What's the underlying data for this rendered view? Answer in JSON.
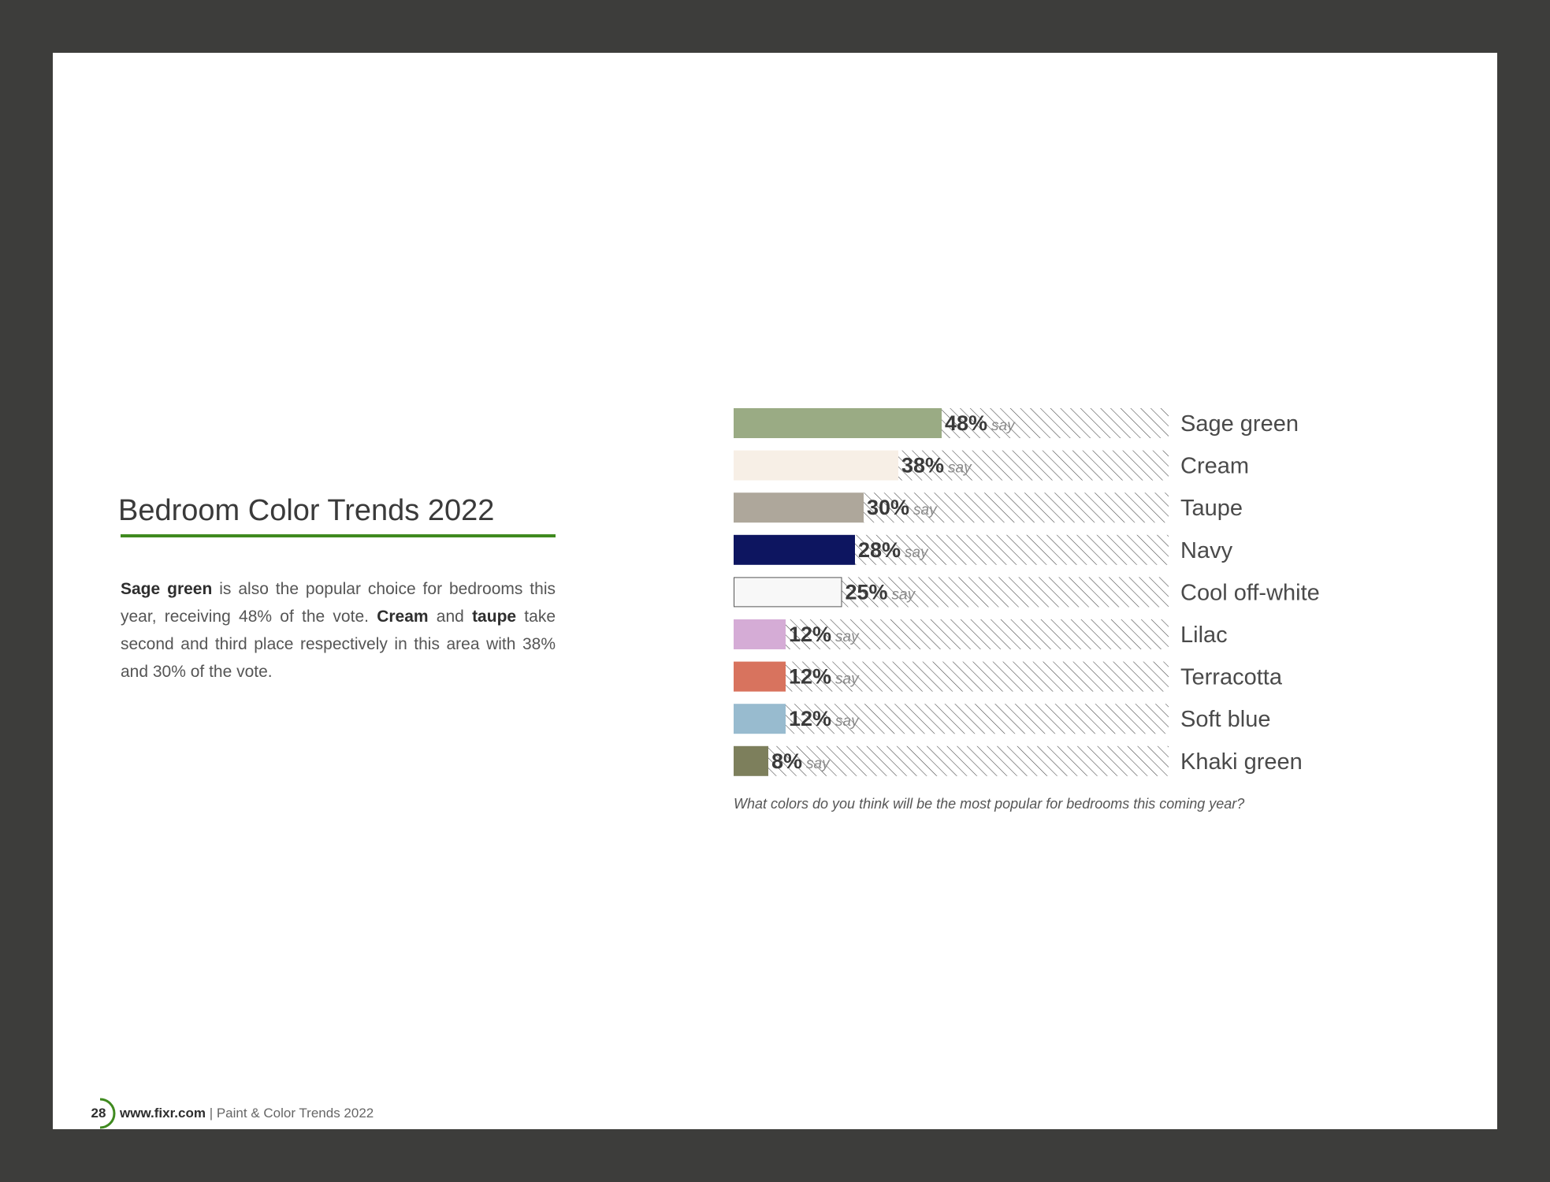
{
  "page": {
    "title": "Bedroom Color Trends 2022",
    "accent_color": "#3f8a1f",
    "body": [
      {
        "text": "Sage green",
        "bold": true
      },
      {
        "text": " is also the popular choice for bedrooms this year, receiving 48% of the vote. ",
        "bold": false
      },
      {
        "text": "Cream",
        "bold": true
      },
      {
        "text": " and ",
        "bold": false
      },
      {
        "text": "taupe",
        "bold": true
      },
      {
        "text": " take second and third place respectively in this area with 38% and 30% of the vote.",
        "bold": false
      }
    ],
    "footer": {
      "page_number": "28",
      "site": "www.fixr.com",
      "separator": " | ",
      "publication": "Paint & Color Trends 2022"
    }
  },
  "chart_data": {
    "type": "bar",
    "orientation": "horizontal",
    "title": "",
    "caption": "What colors do you think will be the most popular for bedrooms this coming year?",
    "value_suffix": "say",
    "xlim": [
      0,
      100
    ],
    "grid": false,
    "categories": [
      "Sage green",
      "Cream",
      "Taupe",
      "Navy",
      "Cool off-white",
      "Lilac",
      "Terracotta",
      "Soft blue",
      "Khaki green"
    ],
    "values": [
      48,
      38,
      30,
      28,
      25,
      12,
      12,
      12,
      8
    ],
    "value_labels": [
      "48%",
      "38%",
      "30%",
      "28%",
      "25%",
      "12%",
      "12%",
      "12%",
      "8%"
    ],
    "colors": [
      "#9aab84",
      "#f7efe6",
      "#aea79b",
      "#0d1560",
      "#f8f8f8",
      "#d5acd6",
      "#d8735e",
      "#98bbcf",
      "#7d7f5c"
    ]
  }
}
